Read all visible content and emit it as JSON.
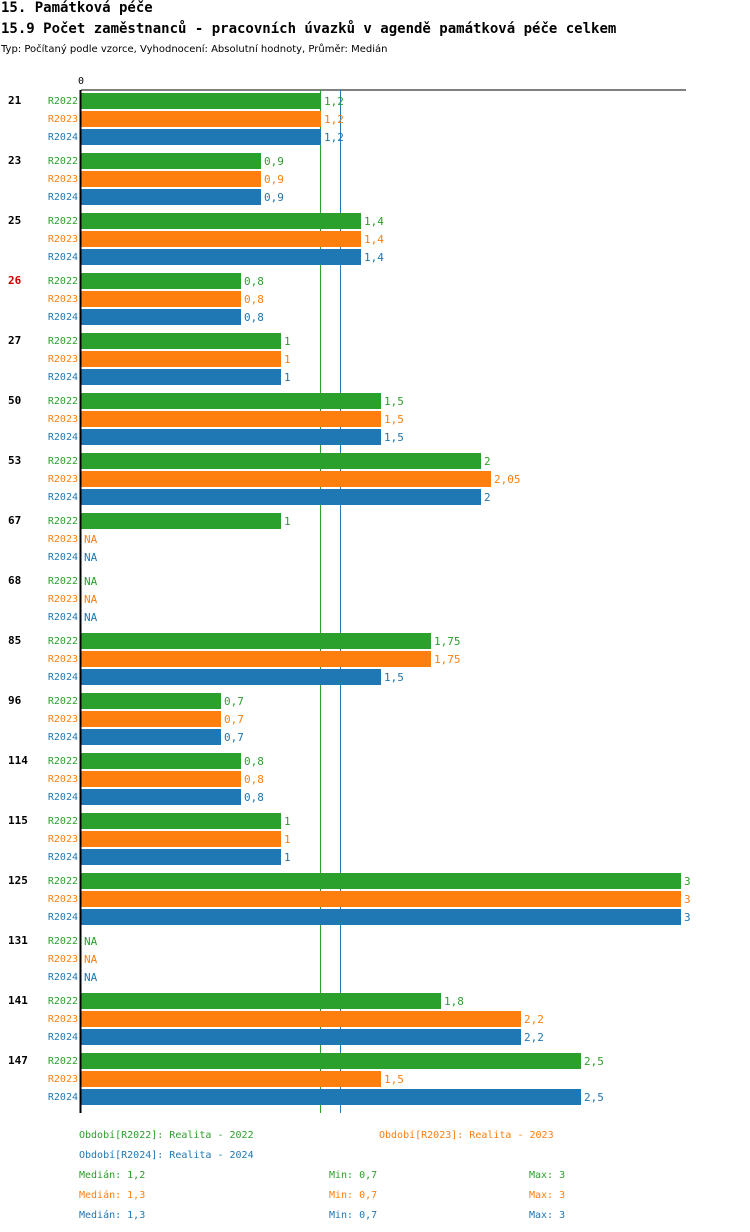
{
  "header": {
    "section": "15. Památková péče",
    "title": "15.9 Počet zaměstnanců - pracovních úvazků v agendě památková péče celkem",
    "subtitle": "Typ: Počítaný podle vzorce, Vyhodnocení: Absolutní hodnoty, Průměr: Medián"
  },
  "chart_data": {
    "type": "bar",
    "orientation": "horizontal",
    "title": "15.9 Počet zaměstnanců - pracovních úvazků v agendě památková péče celkem",
    "axis_zero_label": "0",
    "xlim": [
      0,
      3
    ],
    "categories": [
      "21",
      "23",
      "25",
      "26",
      "27",
      "50",
      "53",
      "67",
      "68",
      "85",
      "96",
      "114",
      "115",
      "125",
      "131",
      "141",
      "147"
    ],
    "highlight_category": "26",
    "highlight_color": "#cc0000",
    "series": [
      {
        "name": "R2022",
        "color": "#2ca02c",
        "values": [
          1.2,
          0.9,
          1.4,
          0.8,
          1,
          1.5,
          2,
          1,
          null,
          1.75,
          0.7,
          0.8,
          1,
          3,
          null,
          1.8,
          2.5
        ],
        "labels": [
          "1,2",
          "0,9",
          "1,4",
          "0,8",
          "1",
          "1,5",
          "2",
          "1",
          "NA",
          "1,75",
          "0,7",
          "0,8",
          "1",
          "3",
          "NA",
          "1,8",
          "2,5"
        ]
      },
      {
        "name": "R2023",
        "color": "#ff7f0e",
        "values": [
          1.2,
          0.9,
          1.4,
          0.8,
          1,
          1.5,
          2.05,
          null,
          null,
          1.75,
          0.7,
          0.8,
          1,
          3,
          null,
          2.2,
          1.5
        ],
        "labels": [
          "1,2",
          "0,9",
          "1,4",
          "0,8",
          "1",
          "1,5",
          "2,05",
          "NA",
          "NA",
          "1,75",
          "0,7",
          "0,8",
          "1",
          "3",
          "NA",
          "2,2",
          "1,5"
        ]
      },
      {
        "name": "R2024",
        "color": "#1f77b4",
        "values": [
          1.2,
          0.9,
          1.4,
          0.8,
          1,
          1.5,
          2,
          null,
          null,
          1.5,
          0.7,
          0.8,
          1,
          3,
          null,
          2.2,
          2.5
        ],
        "labels": [
          "1,2",
          "0,9",
          "1,4",
          "0,8",
          "1",
          "1,5",
          "2",
          "NA",
          "NA",
          "1,5",
          "0,7",
          "0,8",
          "1",
          "3",
          "NA",
          "2,2",
          "2,5"
        ]
      }
    ],
    "median_lines": [
      {
        "series": "R2022",
        "value": 1.2
      },
      {
        "series": "R2024",
        "value": 1.3
      }
    ]
  },
  "legend": {
    "entries": [
      {
        "text": "Období[R2022]: Realita - 2022",
        "color": "#2ca02c"
      },
      {
        "text": "Období[R2023]: Realita - 2023",
        "color": "#ff7f0e"
      },
      {
        "text": "Období[R2024]: Realita - 2024",
        "color": "#1f77b4"
      }
    ],
    "stats": [
      {
        "median": "Medián: 1,2",
        "min": "Min: 0,7",
        "max": "Max: 3",
        "color": "#2ca02c"
      },
      {
        "median": "Medián: 1,3",
        "min": "Min: 0,7",
        "max": "Max: 3",
        "color": "#ff7f0e"
      },
      {
        "median": "Medián: 1,3",
        "min": "Min: 0,7",
        "max": "Max: 3",
        "color": "#1f77b4"
      }
    ]
  }
}
